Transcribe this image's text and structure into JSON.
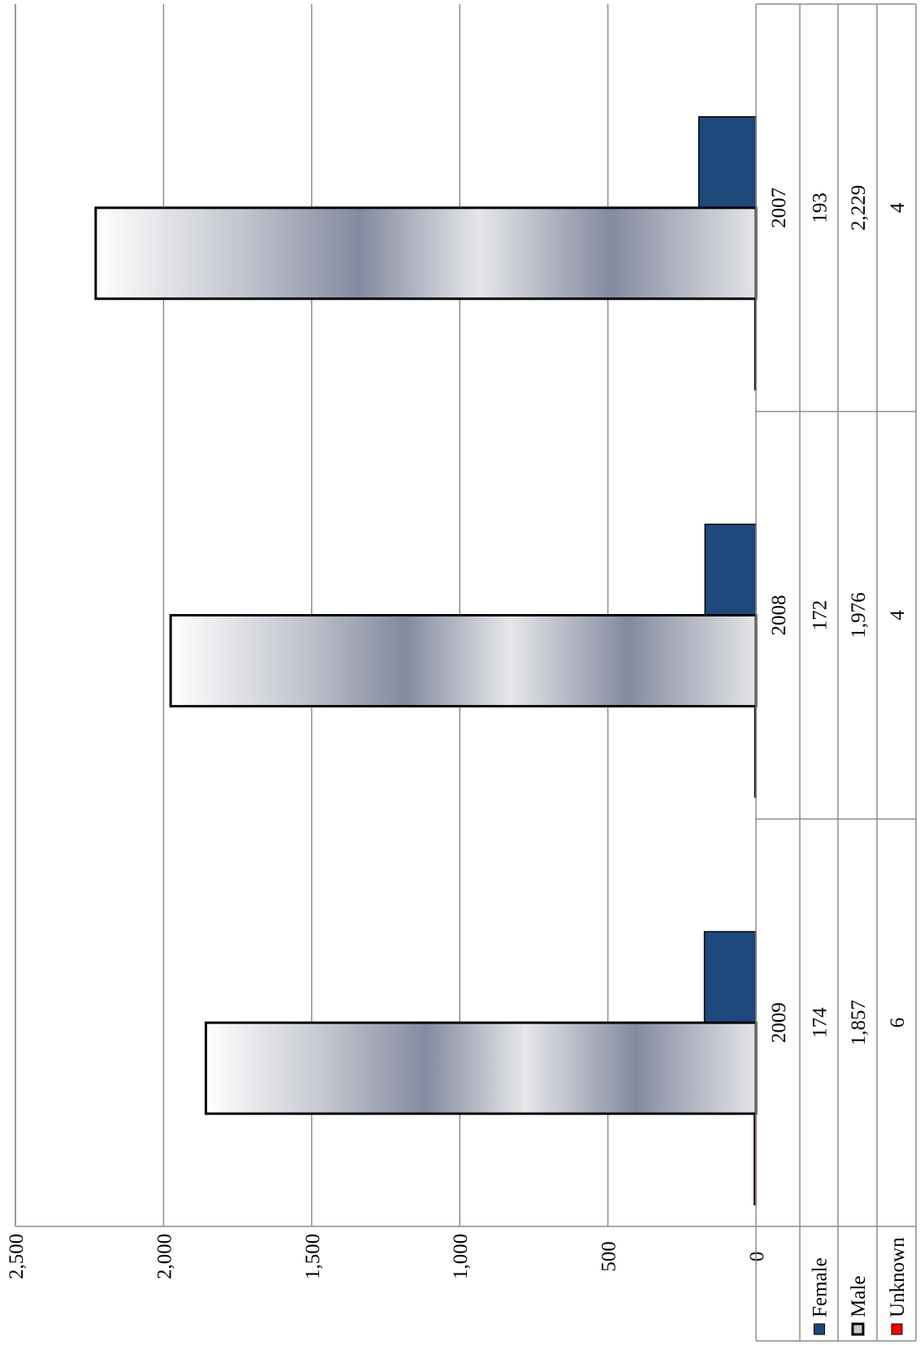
{
  "chart_data": {
    "type": "bar",
    "orientation": "rotated",
    "categories": [
      "2007",
      "2008",
      "2009"
    ],
    "series": [
      {
        "name": "Female",
        "values": [
          193,
          172,
          174
        ],
        "color": "#1F497D"
      },
      {
        "name": "Male",
        "values": [
          2229,
          1976,
          1857
        ],
        "color": "#8A91A8"
      },
      {
        "name": "Unknown",
        "values": [
          4,
          4,
          6
        ],
        "color": "#FF0000"
      }
    ],
    "value_axis": {
      "range": [
        0,
        2500
      ],
      "ticks": [
        0,
        500,
        1000,
        1500,
        2000,
        2500
      ],
      "tick_labels": [
        "0",
        "500",
        "1,000",
        "1,500",
        "2,000",
        "2,500"
      ]
    },
    "data_table": {
      "rows": [
        {
          "label": "Female",
          "cells": [
            "193",
            "172",
            "174"
          ]
        },
        {
          "label": "Male",
          "cells": [
            "2,229",
            "1,976",
            "1,857"
          ]
        },
        {
          "label": "Unknown",
          "cells": [
            "4",
            "4",
            "6"
          ]
        }
      ]
    },
    "grid": true,
    "legend": "in data table"
  }
}
